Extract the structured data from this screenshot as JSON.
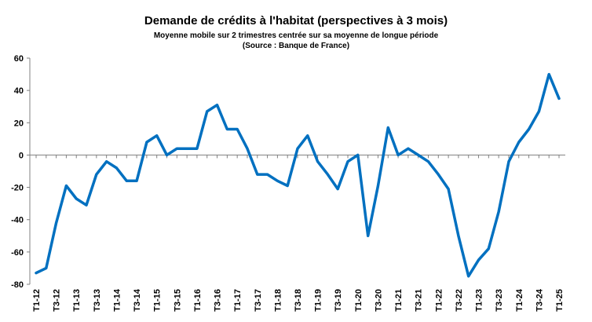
{
  "chart_data": {
    "type": "line",
    "title": "Demande de crédits à l'habitat (perspectives à 3 mois)",
    "subtitle": "Moyenne mobile sur 2 trimestres centrée sur sa moyenne de longue période",
    "source": "(Source : Banque de France)",
    "xlabel": "",
    "ylabel": "",
    "ylim": [
      -80,
      60
    ],
    "y_ticks": [
      60,
      40,
      20,
      0,
      -20,
      -40,
      -60,
      -80
    ],
    "grid": false,
    "legend": "none",
    "line_color": "#0070C0",
    "x_tick_labels": [
      "T1-12",
      "T3-12",
      "T1-13",
      "T3-13",
      "T1-14",
      "T3-14",
      "T1-15",
      "T3-15",
      "T1-16",
      "T3-16",
      "T1-17",
      "T3-17",
      "T1-18",
      "T3-18",
      "T1-19",
      "T3-19",
      "T1-20",
      "T3-20",
      "T1-21",
      "T3-21",
      "T1-22",
      "T3-22",
      "T1-23",
      "T3-23",
      "T1-24",
      "T3-24",
      "T1-25"
    ],
    "x": [
      "T1-12",
      "T2-12",
      "T3-12",
      "T4-12",
      "T1-13",
      "T2-13",
      "T3-13",
      "T4-13",
      "T1-14",
      "T2-14",
      "T3-14",
      "T4-14",
      "T1-15",
      "T2-15",
      "T3-15",
      "T4-15",
      "T1-16",
      "T2-16",
      "T3-16",
      "T4-16",
      "T1-17",
      "T2-17",
      "T3-17",
      "T4-17",
      "T1-18",
      "T2-18",
      "T3-18",
      "T4-18",
      "T1-19",
      "T2-19",
      "T3-19",
      "T4-19",
      "T1-20",
      "T2-20",
      "T3-20",
      "T4-20",
      "T1-21",
      "T2-21",
      "T3-21",
      "T4-21",
      "T1-22",
      "T2-22",
      "T3-22",
      "T4-22",
      "T1-23",
      "T2-23",
      "T3-23",
      "T4-23",
      "T1-24",
      "T2-24",
      "T3-24",
      "T4-24",
      "T1-25"
    ],
    "values": [
      -73,
      -70,
      -42,
      -19,
      -27,
      -31,
      -12,
      -4,
      -8,
      -16,
      -16,
      8,
      12,
      0,
      4,
      4,
      4,
      27,
      31,
      16,
      16,
      4,
      -12,
      -12,
      -16,
      -19,
      4,
      12,
      -4,
      -12,
      -21,
      -4,
      0,
      -50,
      -19,
      17,
      0,
      4,
      0,
      -4,
      -12,
      -21,
      -50,
      -75,
      -65,
      -58,
      -35,
      -4,
      8,
      16,
      27,
      50,
      35
    ]
  }
}
